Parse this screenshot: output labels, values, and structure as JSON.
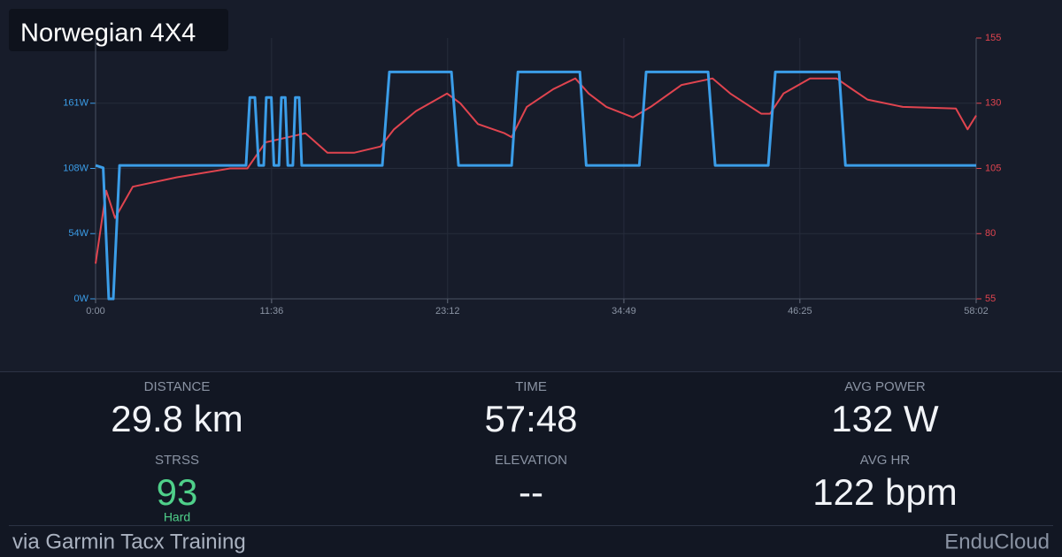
{
  "chart_data": {
    "type": "line",
    "title": "Norwegian 4X4",
    "xlim": [
      0,
      3482
    ],
    "xticks": [
      {
        "value": 0,
        "label": "0:00"
      },
      {
        "value": 696,
        "label": "11:36"
      },
      {
        "value": 1392,
        "label": "23:12"
      },
      {
        "value": 2089,
        "label": "34:49"
      },
      {
        "value": 2785,
        "label": "46:25"
      },
      {
        "value": 3482,
        "label": "58:02"
      }
    ],
    "ylim": [
      0,
      215
    ],
    "yticks": [
      {
        "value": 0,
        "label": "0W"
      },
      {
        "value": 53.75,
        "label": "54W"
      },
      {
        "value": 107.5,
        "label": "108W"
      },
      {
        "value": 161.25,
        "label": "161W"
      }
    ],
    "y2lim": [
      55,
      155
    ],
    "y2ticks": [
      55,
      80,
      105,
      130,
      155
    ],
    "grid": true,
    "series": [
      {
        "name": "Power",
        "color": "#3b9de8",
        "x": [
          0,
          30,
          52,
          70,
          95,
          595,
          610,
          630,
          645,
          665,
          675,
          695,
          705,
          725,
          735,
          750,
          760,
          780,
          790,
          805,
          815,
          1134,
          1162,
          1407,
          1435,
          1645,
          1670,
          1915,
          1940,
          2150,
          2177,
          2422,
          2450,
          2660,
          2688,
          2940,
          2965,
          3482
        ],
        "values": [
          110,
          108,
          0,
          0,
          110,
          110,
          166,
          166,
          110,
          110,
          166,
          166,
          110,
          110,
          166,
          166,
          110,
          110,
          166,
          166,
          110,
          110,
          187,
          187,
          110,
          110,
          187,
          187,
          110,
          110,
          187,
          187,
          110,
          110,
          187,
          187,
          110,
          110
        ]
      },
      {
        "name": "Heart rate",
        "color": "#e0444f",
        "axis": "y2",
        "x": [
          0,
          42,
          77,
          147,
          322,
          532,
          600,
          672,
          830,
          917,
          1022,
          1127,
          1180,
          1267,
          1390,
          1442,
          1512,
          1617,
          1645,
          1705,
          1810,
          1897,
          1950,
          2020,
          2125,
          2195,
          2317,
          2440,
          2510,
          2632,
          2667,
          2720,
          2825,
          2930,
          2982,
          3052,
          3192,
          3402,
          3448,
          3482
        ],
        "values": [
          68.5,
          96.5,
          86,
          98,
          101.6,
          105,
          105,
          115,
          118.5,
          111,
          111,
          113.4,
          120,
          127,
          133.7,
          130,
          122,
          118.5,
          117,
          128.6,
          135.4,
          139.5,
          133.7,
          128.6,
          124.6,
          128.6,
          137,
          139.5,
          133.7,
          126,
          126,
          133.7,
          139.5,
          139.5,
          136,
          131.4,
          128.6,
          128,
          120,
          125.3
        ]
      }
    ]
  },
  "stats": [
    {
      "label": "DISTANCE",
      "value": "29.8 km"
    },
    {
      "label": "TIME",
      "value": "57:48"
    },
    {
      "label": "AVG POWER",
      "value": "132 W"
    },
    {
      "label": "STRSS",
      "value": "93",
      "note": "Hard"
    },
    {
      "label": "ELEVATION",
      "value": "--"
    },
    {
      "label": "AVG HR",
      "value": "122 bpm"
    }
  ],
  "footer": {
    "source": "via Garmin Tacx Training",
    "brand": "EnduCloud"
  }
}
